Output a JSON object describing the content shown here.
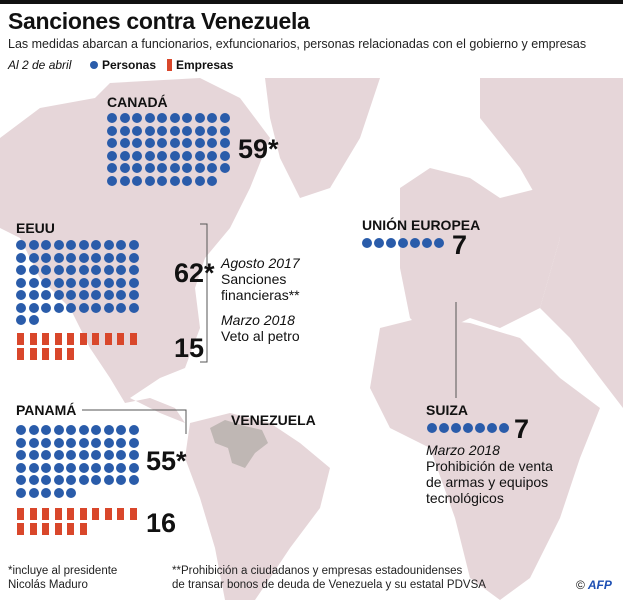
{
  "header": {
    "title": "Sanciones contra Venezuela",
    "subtitle": "Las medidas abarcan a funcionarios, exfuncionarios, personas relacionadas con el gobierno y empresas",
    "date": "Al 2 de abril",
    "legend_personas": "Personas",
    "legend_empresas": "Empresas"
  },
  "colors": {
    "personas": "#2a5caa",
    "empresas": "#d9472b",
    "land": "#e6d6d9",
    "venezuela": "#bfb7b4"
  },
  "countries": {
    "canada": {
      "label": "CANADÁ",
      "personas": 59,
      "personas_label": "59*"
    },
    "eeuu": {
      "label": "EEUU",
      "personas": 62,
      "personas_label": "62*",
      "empresas": 15,
      "empresas_label": "15",
      "notes": [
        {
          "date": "Agosto 2017",
          "text1": "Sanciones",
          "text2": "financieras**"
        },
        {
          "date": "Marzo 2018",
          "text1": "Veto al petro"
        }
      ]
    },
    "panama": {
      "label": "PANAMÁ",
      "personas": 55,
      "personas_label": "55*",
      "empresas": 16,
      "empresas_label": "16"
    },
    "ue": {
      "label": "UNIÓN EUROPEA",
      "personas": 7,
      "personas_label": "7"
    },
    "suiza": {
      "label": "SUIZA",
      "personas": 7,
      "personas_label": "7",
      "date": "Marzo 2018",
      "text1": "Prohibición de venta",
      "text2": "de armas y equipos",
      "text3": "tecnológicos"
    },
    "venezuela": {
      "label": "VENEZUELA"
    }
  },
  "footnotes": {
    "f1a": "*incluye al presidente",
    "f1b": "Nicolás Maduro",
    "f2a": "**Prohibición a ciudadanos y empresas estadounidenses",
    "f2b": "de transar bonos de deuda de Venezuela y su estatal PDVSA"
  },
  "credit": {
    "copyright": "©",
    "brand": "AFP"
  }
}
